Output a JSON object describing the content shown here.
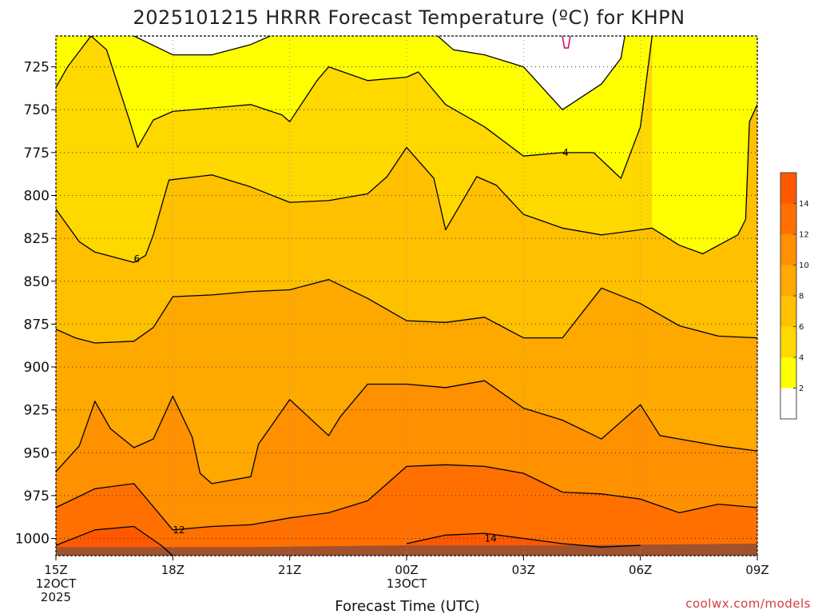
{
  "header": {
    "title": "2025101215 HRRR Forecast Temperature (ºC) for KHPN"
  },
  "credit": "coolwx.com/models",
  "colors": {
    "fill_2_4": "#ffff00",
    "fill_4_6": "#ffd800",
    "fill_6_8": "#ffc000",
    "fill_8_10": "#ffa800",
    "fill_10_12": "#ff9000",
    "fill_12_14": "#ff7000",
    "fill_14_16": "#ff5800",
    "below_2": "#ffffff",
    "ground": "#a0522d",
    "contour": "#000000",
    "contour_zero": "#cc0066"
  },
  "chart_data": {
    "type": "heatmap",
    "title": "2025101215 HRRR Forecast Temperature (ºC) for KHPN",
    "xlabel": "Forecast Time (UTC)",
    "ylabel": "",
    "y_axis": {
      "ticks": [
        "725",
        "750",
        "775",
        "800",
        "825",
        "850",
        "875",
        "900",
        "925",
        "950",
        "975",
        "1000"
      ],
      "ylim": [
        1010,
        707
      ]
    },
    "x_axis": {
      "ticks": [
        {
          "label": "15Z",
          "sub": [
            "12OCT",
            "2025"
          ]
        },
        {
          "label": "18Z",
          "sub": []
        },
        {
          "label": "21Z",
          "sub": []
        },
        {
          "label": "00Z",
          "sub": [
            "13OCT"
          ]
        },
        {
          "label": "03Z",
          "sub": []
        },
        {
          "label": "06Z",
          "sub": []
        },
        {
          "label": "09Z",
          "sub": []
        }
      ],
      "xlim": [
        15,
        33
      ]
    },
    "grid": true,
    "legend": {
      "position": "right",
      "levels": [
        2,
        4,
        6,
        8,
        10,
        12,
        14
      ],
      "labels": [
        "2",
        "4",
        "6",
        "8",
        "10",
        "12",
        "14"
      ]
    },
    "contour_labels": [
      {
        "text": "4",
        "hour": 28.0,
        "pressure": 775
      },
      {
        "text": "6",
        "hour": 17.0,
        "pressure": 837
      },
      {
        "text": "12",
        "hour": 18.0,
        "pressure": 995
      },
      {
        "text": "14",
        "hour": 26.0,
        "pressure": 1000
      }
    ],
    "contours": [
      {
        "level": 2,
        "points": [
          [
            17,
            707
          ],
          [
            18,
            718
          ],
          [
            19,
            718
          ],
          [
            20,
            712
          ],
          [
            20.5,
            707
          ]
        ]
      },
      {
        "level": 2,
        "points": [
          [
            24.8,
            707
          ],
          [
            25.2,
            715
          ],
          [
            26,
            718
          ],
          [
            27,
            725
          ],
          [
            28,
            750
          ],
          [
            29,
            735
          ],
          [
            29.5,
            720
          ],
          [
            29.6,
            707
          ]
        ]
      },
      {
        "level": 4,
        "points": [
          [
            15,
            737
          ],
          [
            15.3,
            725
          ],
          [
            15.9,
            707
          ],
          [
            16.3,
            715
          ],
          [
            16.9,
            757
          ],
          [
            17.1,
            772
          ],
          [
            17.5,
            756
          ],
          [
            18,
            751
          ],
          [
            19,
            749
          ],
          [
            20,
            747
          ],
          [
            20.8,
            753
          ],
          [
            21,
            757
          ],
          [
            21.7,
            733
          ],
          [
            22,
            725
          ],
          [
            23,
            733
          ],
          [
            24,
            731
          ],
          [
            24.3,
            728
          ],
          [
            25,
            747
          ],
          [
            26,
            760
          ],
          [
            27,
            777
          ],
          [
            28,
            775
          ],
          [
            28.8,
            775
          ],
          [
            29.5,
            790
          ],
          [
            30,
            760
          ],
          [
            30.3,
            707
          ]
        ]
      },
      {
        "level": 6,
        "points": [
          [
            15,
            808
          ],
          [
            15.6,
            827
          ],
          [
            16,
            833
          ],
          [
            17,
            839
          ],
          [
            17.3,
            835
          ],
          [
            17.5,
            823
          ],
          [
            17.9,
            791
          ],
          [
            19,
            788
          ],
          [
            20,
            795
          ],
          [
            21,
            804
          ],
          [
            22,
            803
          ],
          [
            23,
            799
          ],
          [
            23.5,
            789
          ],
          [
            24,
            772
          ],
          [
            24.7,
            790
          ],
          [
            25,
            820
          ],
          [
            25.8,
            789
          ],
          [
            26.3,
            794
          ],
          [
            27,
            811
          ],
          [
            28,
            819
          ],
          [
            29,
            823
          ],
          [
            30,
            820
          ],
          [
            30.3,
            819
          ],
          [
            31,
            829
          ],
          [
            31.6,
            834
          ],
          [
            32.5,
            823
          ],
          [
            32.7,
            814
          ],
          [
            32.8,
            757
          ],
          [
            33,
            747
          ]
        ]
      },
      {
        "level": 8,
        "points": [
          [
            15,
            878
          ],
          [
            15.5,
            883
          ],
          [
            16,
            886
          ],
          [
            17,
            885
          ],
          [
            17.5,
            877
          ],
          [
            18,
            859
          ],
          [
            19,
            858
          ],
          [
            20,
            856
          ],
          [
            21,
            855
          ],
          [
            22,
            849
          ],
          [
            23,
            860
          ],
          [
            24,
            873
          ],
          [
            25,
            874
          ],
          [
            26,
            871
          ],
          [
            27,
            883
          ],
          [
            28,
            883
          ],
          [
            29,
            854
          ],
          [
            30,
            863
          ],
          [
            31,
            876
          ],
          [
            32,
            882
          ],
          [
            33,
            883
          ]
        ]
      },
      {
        "level": 10,
        "points": [
          [
            15,
            961
          ],
          [
            15.6,
            946
          ],
          [
            16,
            920
          ],
          [
            16.4,
            936
          ],
          [
            17,
            947
          ],
          [
            17.5,
            942
          ],
          [
            18,
            917
          ],
          [
            18.5,
            941
          ],
          [
            18.7,
            962
          ],
          [
            19,
            968
          ],
          [
            20,
            964
          ],
          [
            20.2,
            945
          ],
          [
            21,
            919
          ],
          [
            22,
            940
          ],
          [
            22.3,
            929
          ],
          [
            23,
            910
          ],
          [
            24,
            910
          ],
          [
            25,
            912
          ],
          [
            26,
            908
          ],
          [
            27,
            924
          ],
          [
            28,
            931
          ],
          [
            29,
            942
          ],
          [
            30,
            922
          ],
          [
            30.5,
            940
          ],
          [
            31,
            942
          ],
          [
            32,
            946
          ],
          [
            33,
            949
          ]
        ]
      },
      {
        "level": 12,
        "points": [
          [
            15,
            982
          ],
          [
            16,
            971
          ],
          [
            17,
            968
          ],
          [
            18,
            995
          ],
          [
            19,
            993
          ],
          [
            20,
            992
          ],
          [
            21,
            988
          ],
          [
            22,
            985
          ],
          [
            23,
            978
          ],
          [
            23.4,
            970
          ],
          [
            24,
            958
          ],
          [
            25,
            957
          ],
          [
            26,
            958
          ],
          [
            27,
            962
          ],
          [
            28,
            973
          ],
          [
            29,
            974
          ],
          [
            30,
            977
          ],
          [
            31,
            985
          ],
          [
            32,
            980
          ],
          [
            33,
            982
          ]
        ]
      },
      {
        "level": 14,
        "points": [
          [
            15,
            1004
          ],
          [
            16,
            995
          ],
          [
            17,
            993
          ],
          [
            17.7,
            1004
          ],
          [
            18,
            1010
          ]
        ]
      },
      {
        "level": 14,
        "points": [
          [
            24,
            1003
          ],
          [
            25,
            998
          ],
          [
            26,
            997
          ],
          [
            27,
            1000
          ],
          [
            28,
            1003
          ],
          [
            29,
            1005
          ],
          [
            30,
            1004
          ]
        ]
      }
    ],
    "zero_contour": {
      "level": 0,
      "points": [
        [
          28,
          707
        ],
        [
          28.05,
          714
        ],
        [
          28.15,
          714
        ],
        [
          28.2,
          707
        ]
      ]
    }
  }
}
